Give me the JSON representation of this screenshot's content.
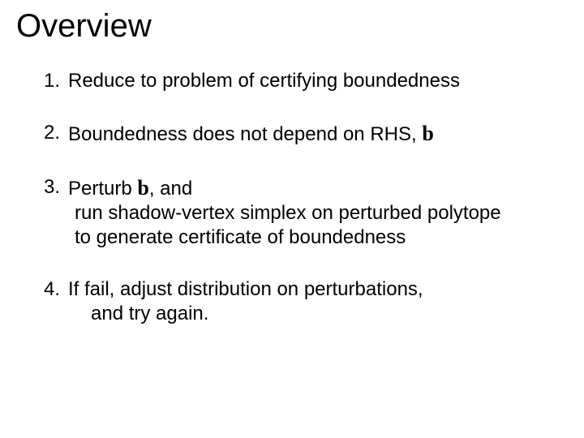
{
  "title": "Overview",
  "items": [
    {
      "num": "1.",
      "text": "Reduce to problem of certifying boundedness"
    },
    {
      "num": "2.",
      "pre": "Boundedness  does not depend on RHS, ",
      "math": "b"
    },
    {
      "num": "3.",
      "pre": "Perturb  ",
      "math": "b",
      "post": ", and",
      "cont1": "run shadow-vertex simplex on perturbed polytope",
      "cont2": "to generate certificate of boundedness"
    },
    {
      "num": "4.",
      "text": "If fail, adjust distribution on perturbations,",
      "cont1": "and try again."
    }
  ],
  "colors": {
    "background": "#ffffff",
    "text": "#000000"
  },
  "fontsizes": {
    "title": 40,
    "body": 24
  }
}
